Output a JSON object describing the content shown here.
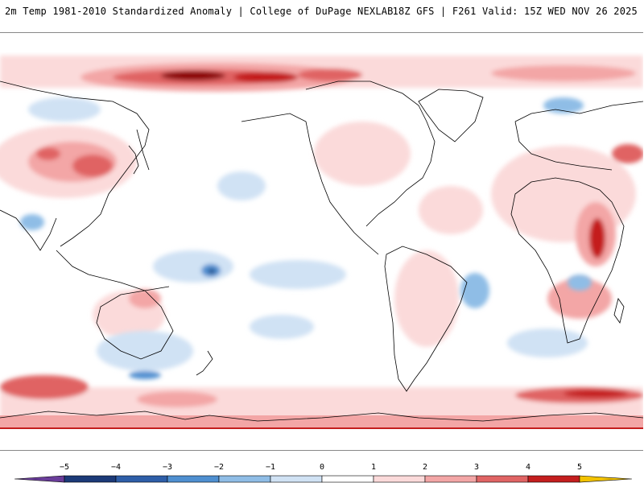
{
  "header": {
    "title_left": "2m Temp 1981-2010 Standardized Anomaly | College of DuPage NEXLAB",
    "title_right": "18Z GFS | F261 Valid: 15Z WED NOV 26 2025"
  },
  "map": {
    "variable": "2m Temp Standardized Anomaly",
    "projection": "global cylindrical, centered on Pacific"
  },
  "legend": {
    "ticks": [
      {
        "value": -5,
        "label": "−5"
      },
      {
        "value": -4,
        "label": "−4"
      },
      {
        "value": -3,
        "label": "−3"
      },
      {
        "value": -2,
        "label": "−2"
      },
      {
        "value": -1,
        "label": "−1"
      },
      {
        "value": 0,
        "label": "0"
      },
      {
        "value": 1,
        "label": "1"
      },
      {
        "value": 2,
        "label": "2"
      },
      {
        "value": 3,
        "label": "3"
      },
      {
        "value": 4,
        "label": "4"
      },
      {
        "value": 5,
        "label": "5"
      }
    ],
    "colors": {
      "under": "#6a3d9a",
      "n5": "#1c3a78",
      "n4": "#2e5ea8",
      "n3": "#4f8fd0",
      "n2": "#8fbde6",
      "n1": "#d0e2f4",
      "z0": "#ffffff",
      "p1": "#fbdada",
      "p2": "#f3a6a6",
      "p3": "#e06464",
      "p4": "#c41e1e",
      "p5": "#8b0000",
      "over": "#f2c200"
    }
  }
}
